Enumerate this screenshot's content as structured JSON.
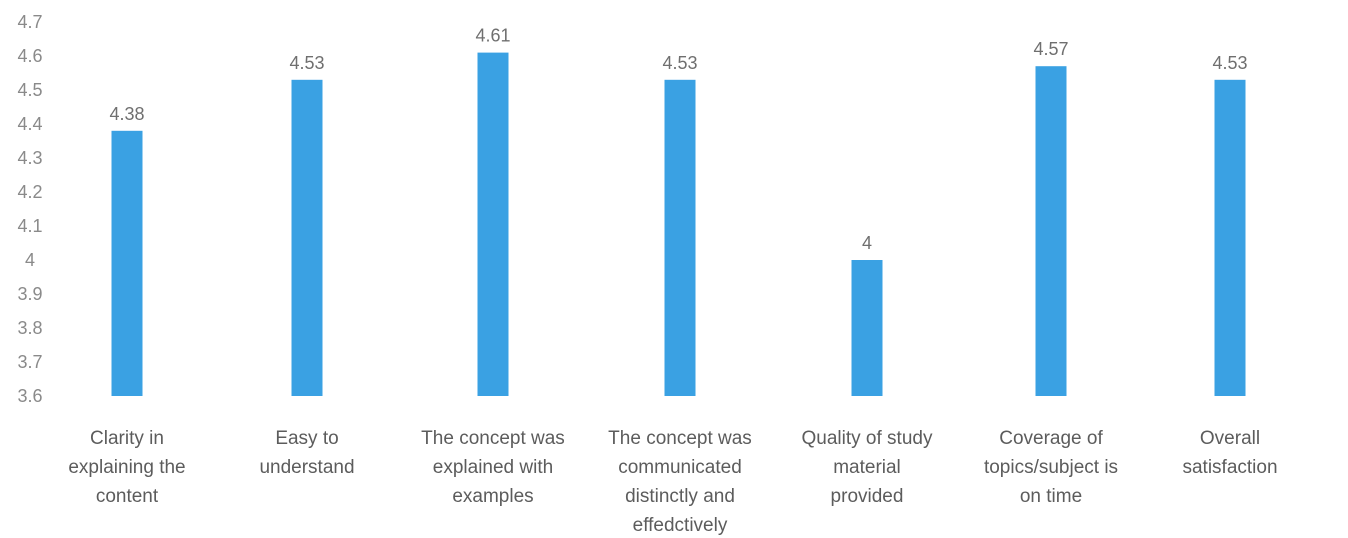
{
  "chart_data": {
    "type": "bar",
    "categories": [
      "Clarity in explaining the content",
      "Easy to understand",
      "The concept was explained with examples",
      "The concept was communicated distinctly and effedctively",
      "Quality of study material provided",
      "Coverage of topics/subject is on time",
      "Overall satisfaction"
    ],
    "category_lines": [
      [
        "Clarity in",
        "explaining the",
        "content"
      ],
      [
        "Easy to",
        "understand"
      ],
      [
        "The concept was",
        "explained with",
        "examples"
      ],
      [
        "The concept was",
        "communicated",
        "distinctly and",
        "effedctively"
      ],
      [
        "Quality of study",
        "material",
        "provided"
      ],
      [
        "Coverage of",
        "topics/subject is",
        "on time"
      ],
      [
        "Overall",
        "satisfaction"
      ]
    ],
    "values": [
      4.38,
      4.53,
      4.61,
      4.53,
      4,
      4.57,
      4.53
    ],
    "data_labels": [
      "4.38",
      "4.53",
      "4.61",
      "4.53",
      "4",
      "4.57",
      "4.53"
    ],
    "y_ticks": [
      "3.6",
      "3.7",
      "3.8",
      "3.9",
      "4",
      "4.1",
      "4.2",
      "4.3",
      "4.4",
      "4.5",
      "4.6",
      "4.7"
    ],
    "ylim": [
      3.6,
      4.7
    ],
    "bar_color": "#3aa1e3",
    "title": "",
    "xlabel": "",
    "ylabel": "",
    "grid": false,
    "legend": false
  }
}
